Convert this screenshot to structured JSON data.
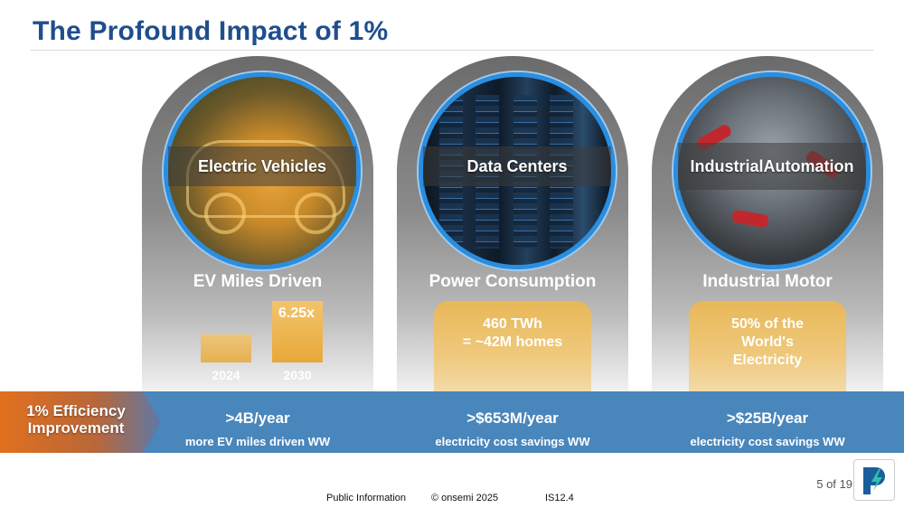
{
  "title": "The Profound Impact of 1%",
  "columns": [
    {
      "circle_label": "Electric Vehicles",
      "subtitle": "EV Miles Driven",
      "value": ">4B/year",
      "description": "more EV miles driven WW"
    },
    {
      "circle_label": "Data Centers",
      "subtitle": "Power Consumption",
      "box_line1": "460 TWh",
      "box_line2": "= ~42M homes",
      "value": ">$653M/year",
      "description": "electricity cost savings WW"
    },
    {
      "circle_label_line1": "Industrial",
      "circle_label_line2": "Automation",
      "subtitle": "Industrial Motor",
      "box_line1": "50% of the",
      "box_line2": "World's",
      "box_line3": "Electricity",
      "value": ">$25B/year",
      "description": "electricity cost savings WW"
    }
  ],
  "ev_chart": {
    "categories": [
      "2024",
      "2030"
    ],
    "relative_values": [
      1,
      6.25
    ],
    "annotation": "6.25x"
  },
  "banner": {
    "line1": "1% Efficiency",
    "line2": "Improvement"
  },
  "page_indicator": "5 of 19",
  "footer": {
    "classification": "Public Information",
    "copyright": "© onsemi 2025",
    "doc_id": "IS12.4"
  },
  "colors": {
    "title": "#1f4e8c",
    "accent_blue": "#2a8ee0",
    "banner_blue": "#3f7fb8",
    "gold": "#e8b858",
    "orange_start": "#e0701e"
  },
  "icons": {
    "logo": "onsemi-logo-icon"
  }
}
